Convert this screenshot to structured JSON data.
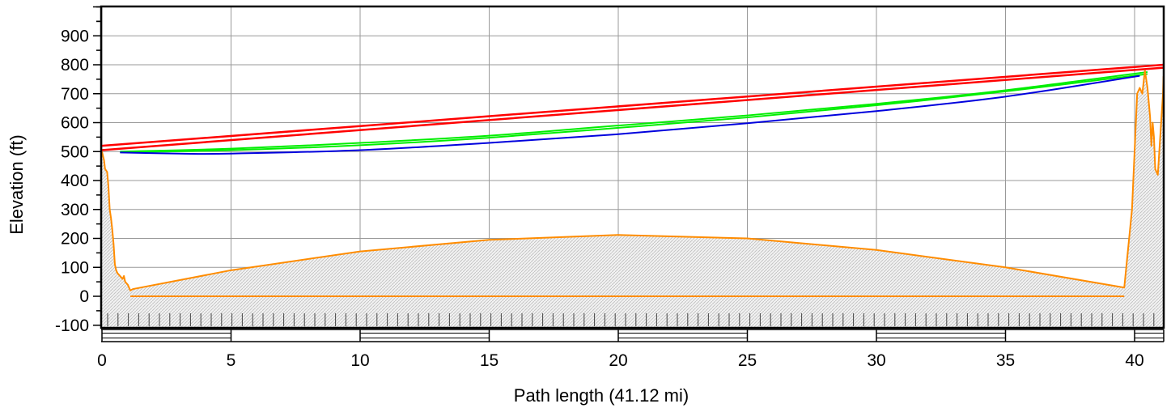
{
  "chart_data": {
    "type": "line",
    "xlabel": "Path length (41.12 mi)",
    "ylabel": "Elevation (ft)",
    "xlim": [
      0,
      41.12
    ],
    "ylim": [
      -110,
      1000
    ],
    "grid": true,
    "x_ticks": [
      0,
      5,
      10,
      15,
      20,
      25,
      30,
      35,
      40
    ],
    "y_ticks": [
      -100,
      0,
      100,
      200,
      300,
      400,
      500,
      600,
      700,
      800,
      900
    ],
    "colors": {
      "los_line": "#ff0000",
      "fresnel": "#00ee00",
      "clearance": "#0000dd",
      "terrain": "#ff8c00",
      "terrain_fill": "#d9d9d9",
      "grid": "#999999"
    },
    "series": [
      {
        "key": "los_upper",
        "color": "#ff0000",
        "points": [
          [
            0,
            520
          ],
          [
            41.12,
            800
          ]
        ]
      },
      {
        "key": "los_lower",
        "color": "#ff0000",
        "points": [
          [
            0,
            505
          ],
          [
            41.12,
            790
          ]
        ]
      },
      {
        "key": "fresnel_upper",
        "color": "#00ee00",
        "points": [
          [
            0.7,
            500
          ],
          [
            5,
            510
          ],
          [
            10,
            530
          ],
          [
            15,
            555
          ],
          [
            20,
            590
          ],
          [
            25,
            625
          ],
          [
            30,
            665
          ],
          [
            35,
            712
          ],
          [
            40.5,
            775
          ]
        ]
      },
      {
        "key": "fresnel_lower",
        "color": "#00ee00",
        "points": [
          [
            0.7,
            498
          ],
          [
            5,
            505
          ],
          [
            10,
            522
          ],
          [
            15,
            548
          ],
          [
            20,
            582
          ],
          [
            25,
            618
          ],
          [
            30,
            660
          ],
          [
            35,
            708
          ],
          [
            40.5,
            768
          ]
        ]
      },
      {
        "key": "clearance",
        "color": "#0000dd",
        "points": [
          [
            0.7,
            497
          ],
          [
            3,
            493
          ],
          [
            5,
            493
          ],
          [
            10,
            505
          ],
          [
            15,
            530
          ],
          [
            20,
            560
          ],
          [
            25,
            598
          ],
          [
            30,
            640
          ],
          [
            35,
            690
          ],
          [
            40.2,
            762
          ]
        ]
      },
      {
        "key": "terrain",
        "color": "#ff8c00",
        "points": [
          [
            0,
            500
          ],
          [
            0.08,
            470
          ],
          [
            0.12,
            440
          ],
          [
            0.2,
            430
          ],
          [
            0.25,
            380
          ],
          [
            0.3,
            300
          ],
          [
            0.35,
            270
          ],
          [
            0.4,
            230
          ],
          [
            0.45,
            180
          ],
          [
            0.5,
            110
          ],
          [
            0.55,
            90
          ],
          [
            0.6,
            80
          ],
          [
            0.7,
            70
          ],
          [
            0.8,
            60
          ],
          [
            0.85,
            70
          ],
          [
            0.9,
            50
          ],
          [
            1.0,
            40
          ],
          [
            1.1,
            20
          ],
          [
            1.2,
            25
          ],
          [
            5,
            90
          ],
          [
            10,
            155
          ],
          [
            15,
            195
          ],
          [
            20,
            212
          ],
          [
            25,
            200
          ],
          [
            30,
            160
          ],
          [
            35,
            100
          ],
          [
            39.6,
            30
          ],
          [
            39.9,
            300
          ],
          [
            40.0,
            500
          ],
          [
            40.1,
            700
          ],
          [
            40.2,
            720
          ],
          [
            40.3,
            700
          ],
          [
            40.4,
            780
          ],
          [
            40.5,
            720
          ],
          [
            40.6,
            620
          ],
          [
            40.65,
            520
          ],
          [
            40.7,
            600
          ],
          [
            40.75,
            550
          ],
          [
            40.8,
            440
          ],
          [
            40.9,
            420
          ],
          [
            41.0,
            560
          ],
          [
            41.1,
            700
          ],
          [
            41.12,
            760
          ]
        ]
      },
      {
        "key": "sea_level",
        "color": "#ff8c00",
        "points": [
          [
            1.1,
            0
          ],
          [
            39.6,
            0
          ]
        ]
      }
    ]
  }
}
